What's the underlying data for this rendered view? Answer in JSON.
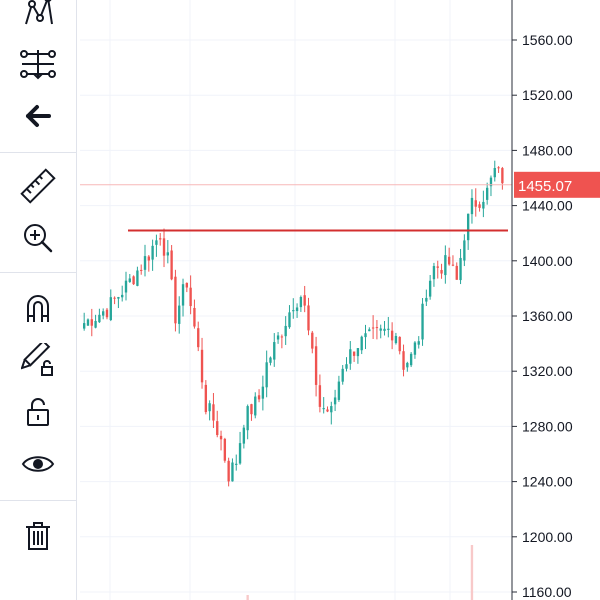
{
  "toolbar": {
    "tools": [
      {
        "name": "pattern-tool",
        "icon": "pattern-icon"
      },
      {
        "name": "forecast-tool",
        "icon": "forecast-icon"
      },
      {
        "name": "back-arrow",
        "icon": "arrow-left-icon"
      },
      {
        "name": "ruler-tool",
        "icon": "ruler-icon"
      },
      {
        "name": "zoom-in-tool",
        "icon": "zoom-in-icon"
      },
      {
        "name": "magnet-tool",
        "icon": "magnet-icon"
      },
      {
        "name": "lock-drawing-tool",
        "icon": "pencil-lock-icon"
      },
      {
        "name": "lock-tool",
        "icon": "unlock-icon"
      },
      {
        "name": "visibility-tool",
        "icon": "eye-icon"
      },
      {
        "name": "trash-tool",
        "icon": "trash-icon"
      }
    ]
  },
  "chart_data": {
    "type": "candlestick",
    "title": "",
    "ylim": [
      1150,
      1590
    ],
    "y_ticks": [
      "1560.00",
      "1520.00",
      "1480.00",
      "1440.00",
      "1400.00",
      "1360.00",
      "1320.00",
      "1280.00",
      "1240.00",
      "1200.00",
      "1160.00"
    ],
    "y_tick_values": [
      1560,
      1520,
      1480,
      1440,
      1400,
      1360,
      1320,
      1280,
      1240,
      1200,
      1160
    ],
    "grid": true,
    "last_price": {
      "value": 1455.07,
      "label": "1455.07",
      "color": "#ef5350"
    },
    "horizontal_line": {
      "value": 1422,
      "color": "#d32f2f"
    },
    "up_color": "#26a69a",
    "down_color": "#ef5350",
    "close_path": [
      [
        0,
        1355
      ],
      [
        6,
        1365
      ],
      [
        12,
        1385
      ],
      [
        17,
        1405
      ],
      [
        20,
        1420
      ],
      [
        22,
        1400
      ],
      [
        24,
        1360
      ],
      [
        27,
        1385
      ],
      [
        30,
        1335
      ],
      [
        32,
        1295
      ],
      [
        34,
        1285
      ],
      [
        36,
        1270
      ],
      [
        38,
        1245
      ],
      [
        40,
        1255
      ],
      [
        42,
        1285
      ],
      [
        46,
        1300
      ],
      [
        48,
        1325
      ],
      [
        52,
        1350
      ],
      [
        55,
        1370
      ],
      [
        57,
        1375
      ],
      [
        58,
        1365
      ],
      [
        60,
        1330
      ],
      [
        62,
        1295
      ],
      [
        65,
        1290
      ],
      [
        68,
        1325
      ],
      [
        72,
        1340
      ],
      [
        76,
        1345
      ],
      [
        80,
        1350
      ],
      [
        82,
        1348
      ],
      [
        84,
        1325
      ],
      [
        86,
        1330
      ],
      [
        88,
        1345
      ],
      [
        90,
        1380
      ],
      [
        92,
        1395
      ],
      [
        96,
        1398
      ],
      [
        98,
        1385
      ],
      [
        100,
        1420
      ],
      [
        102,
        1440
      ],
      [
        106,
        1450
      ],
      [
        108,
        1465
      ],
      [
        110,
        1460
      ]
    ],
    "candle_count": 111,
    "volume_bars": [
      {
        "index": 43,
        "value": 0.05,
        "color": "#f8c9c9"
      },
      {
        "index": 102,
        "value": 0.55,
        "color": "#f8c9c9"
      }
    ]
  }
}
